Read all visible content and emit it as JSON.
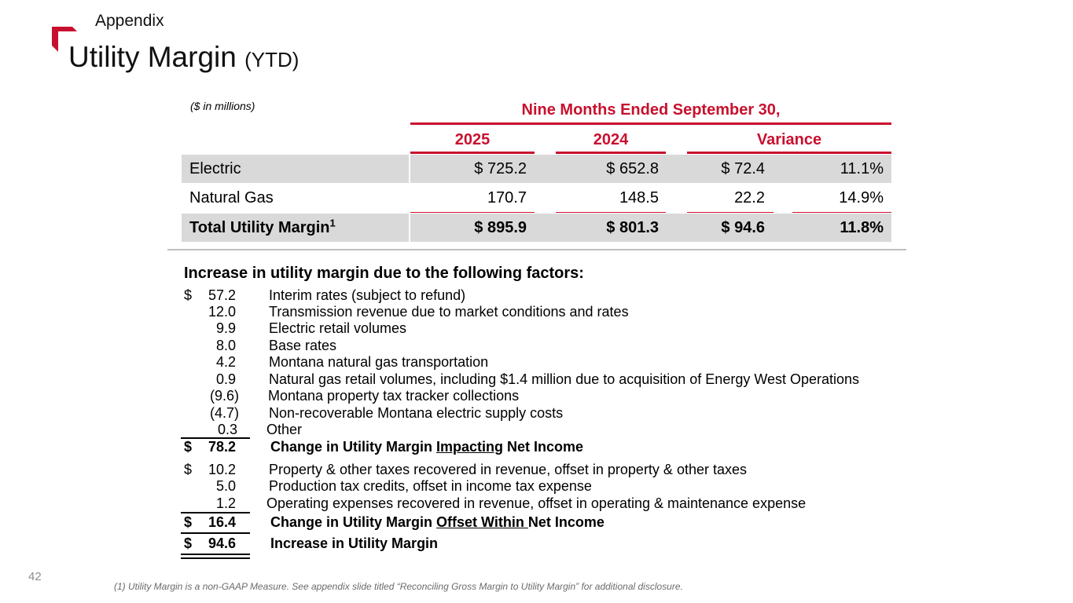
{
  "header": {
    "section": "Appendix",
    "title": "Utility Margin",
    "title_suffix": "(YTD)"
  },
  "colors": {
    "accent": "#c8102e",
    "row_shade": "#d9d9d9",
    "divider": "#bfbfbf"
  },
  "table": {
    "units": "($ in millions)",
    "period": "Nine Months Ended September 30,",
    "columns": [
      "2025",
      "2024",
      "Variance"
    ],
    "rows": [
      {
        "label": "Electric",
        "y2025": "$ 725.2",
        "y2024": "$ 652.8",
        "var_amt": "$ 72.4",
        "var_pct": "11.1%"
      },
      {
        "label": "Natural Gas",
        "y2025": "170.7",
        "y2024": "148.5",
        "var_amt": "22.2",
        "var_pct": "14.9%"
      },
      {
        "label": "Total Utility Margin",
        "label_sup": "1",
        "y2025": "$ 895.9",
        "y2024": "$ 801.3",
        "var_amt": "$ 94.6",
        "var_pct": "11.8%"
      }
    ]
  },
  "factors": {
    "heading": "Increase in utility margin due to the following factors:",
    "group1": [
      {
        "dollar": "$",
        "amount": "57.2",
        "desc": "Interim rates (subject to refund)"
      },
      {
        "dollar": "",
        "amount": "12.0",
        "desc": "Transmission revenue due to market conditions and rates"
      },
      {
        "dollar": "",
        "amount": "9.9",
        "desc": "Electric retail volumes"
      },
      {
        "dollar": "",
        "amount": "8.0",
        "desc": "Base rates"
      },
      {
        "dollar": "",
        "amount": "4.2",
        "desc": "Montana natural gas transportation"
      },
      {
        "dollar": "",
        "amount": "0.9",
        "desc": "Natural gas retail volumes, including $1.4 million due to acquisition of Energy West Operations"
      },
      {
        "dollar": "",
        "amount": "(9.6)",
        "desc": "Montana property tax tracker collections"
      },
      {
        "dollar": "",
        "amount": "(4.7)",
        "desc": "Non-recoverable Montana electric supply costs"
      },
      {
        "dollar": "",
        "amount": "0.3",
        "desc": "Other"
      }
    ],
    "subtotal1": {
      "dollar": "$",
      "amount": "78.2",
      "pre": "Change in Utility Margin ",
      "ul": "Impacting",
      "post": " Net Income"
    },
    "group2": [
      {
        "dollar": "$",
        "amount": "10.2",
        "desc": "Property & other taxes recovered in revenue, offset in property & other taxes"
      },
      {
        "dollar": "",
        "amount": "5.0",
        "desc": "Production tax credits, offset in income tax expense"
      },
      {
        "dollar": "",
        "amount": "1.2",
        "desc": "Operating expenses recovered in revenue, offset in operating & maintenance expense"
      }
    ],
    "subtotal2": {
      "dollar": "$",
      "amount": "16.4",
      "pre": "Change in Utility Margin ",
      "ul": "Offset Within ",
      "post": "Net Income"
    },
    "total": {
      "dollar": "$",
      "amount": "94.6",
      "desc": "Increase in Utility Margin"
    }
  },
  "footer": {
    "page_number": "42",
    "footnote": "(1) Utility Margin is a non-GAAP Measure. See appendix slide titled “Reconciling Gross Margin to Utility Margin” for additional disclosure."
  }
}
